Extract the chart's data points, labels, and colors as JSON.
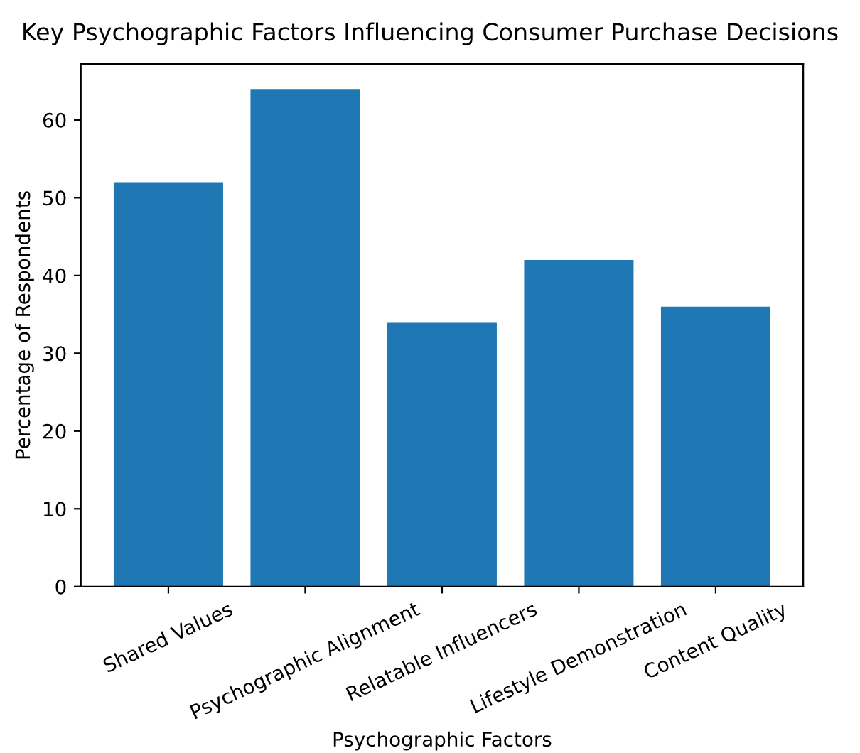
{
  "chart_data": {
    "type": "bar",
    "title": "Key Psychographic Factors Influencing Consumer Purchase Decisions",
    "xlabel": "Psychographic Factors",
    "ylabel": "Percentage of Respondents",
    "categories": [
      "Shared Values",
      "Psychographic Alignment",
      "Relatable Influencers",
      "Lifestyle Demonstration",
      "Content Quality"
    ],
    "values": [
      52,
      64,
      34,
      42,
      36
    ],
    "color": "#1f77b4",
    "ylim": [
      0,
      67.2
    ],
    "yticks": [
      0,
      10,
      20,
      30,
      40,
      50,
      60
    ],
    "grid": false,
    "legend": false
  }
}
